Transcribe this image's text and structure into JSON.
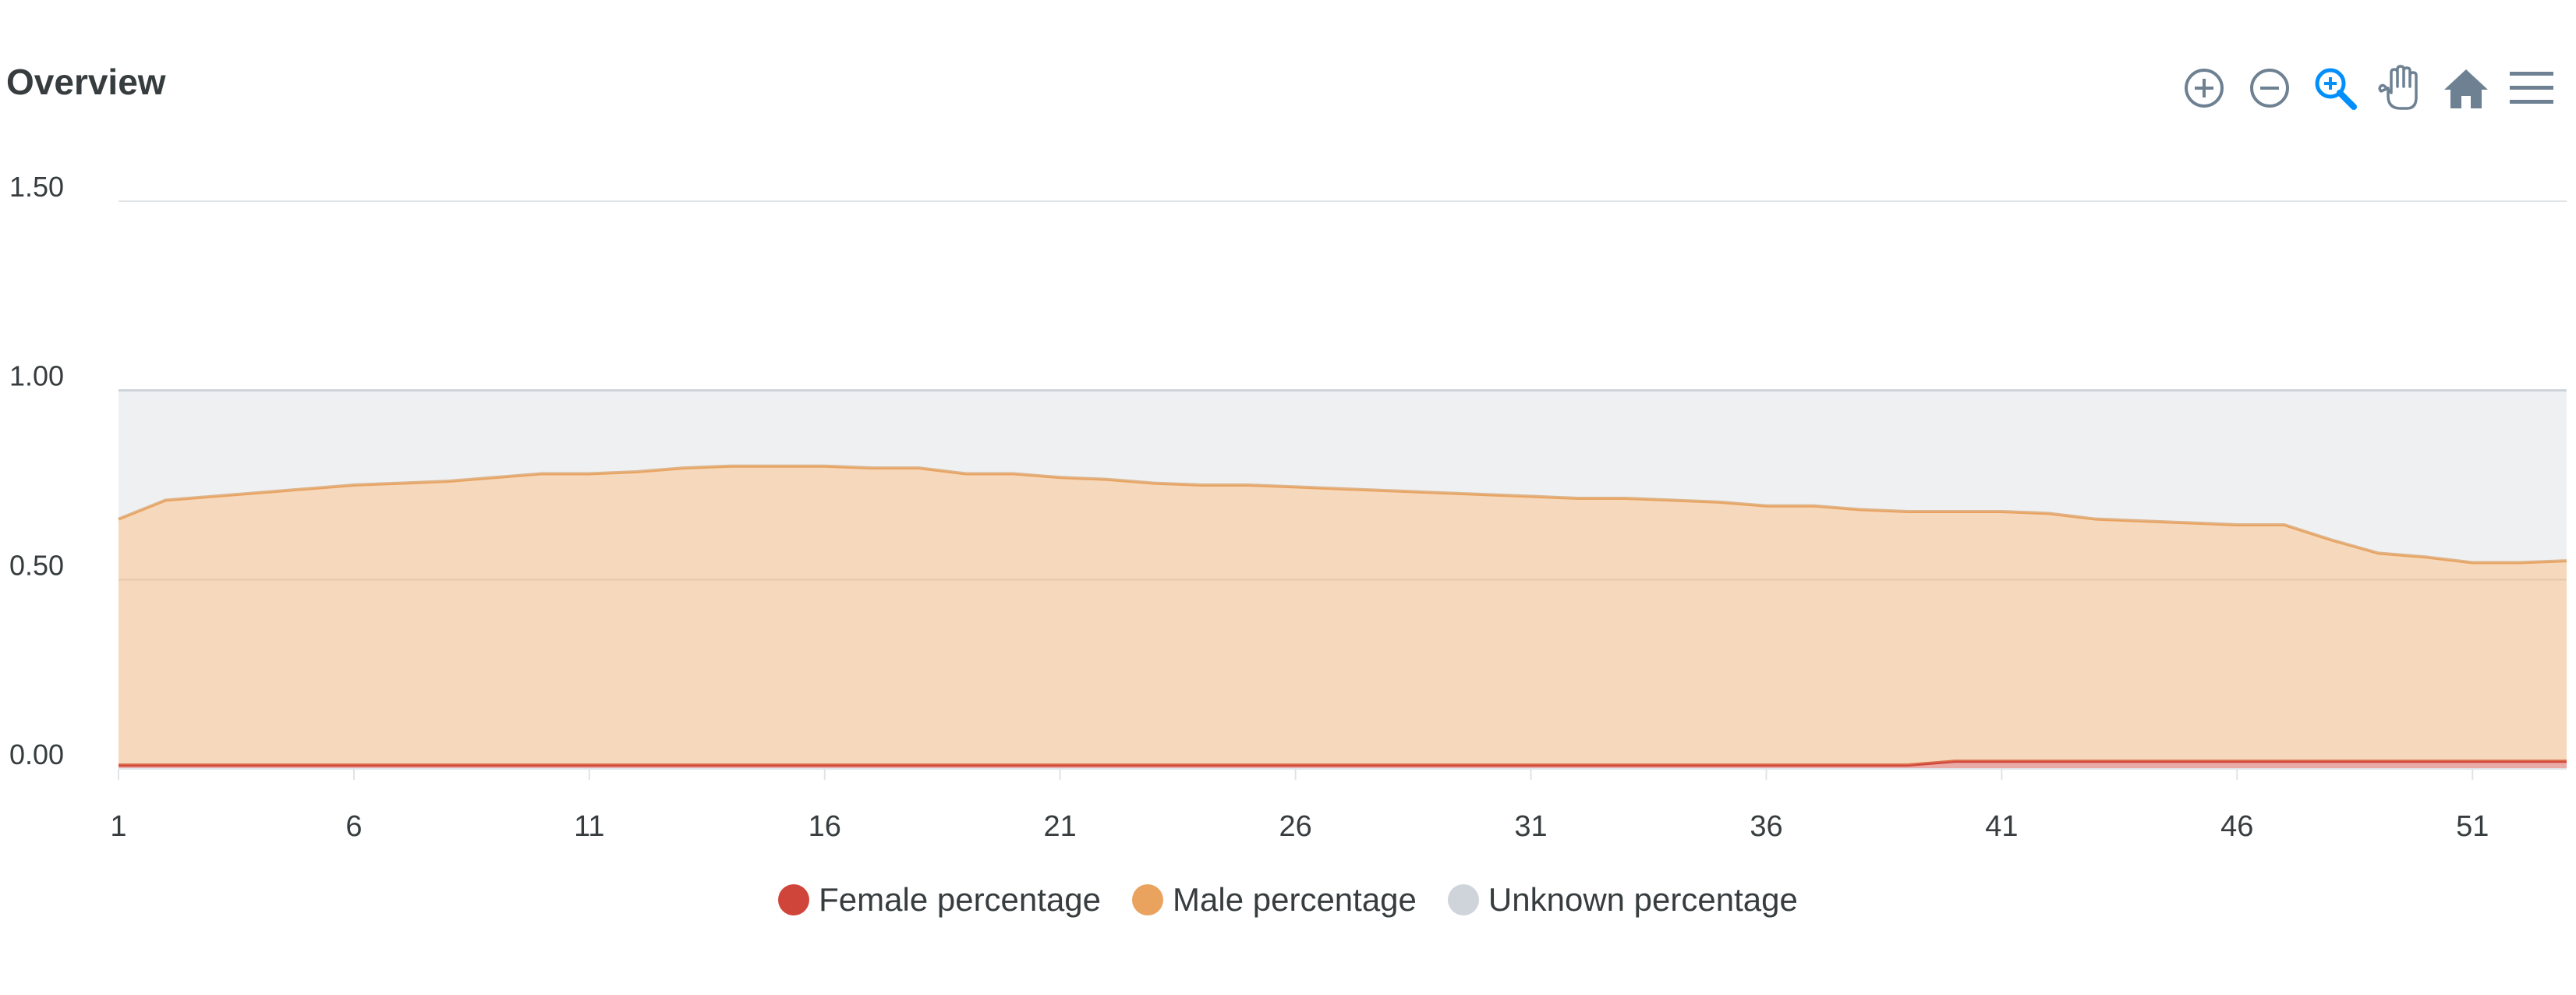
{
  "header": {
    "title": "Overview"
  },
  "toolbar": {
    "tools": [
      {
        "name": "zoom-in-icon",
        "label": "Zoom In"
      },
      {
        "name": "zoom-out-icon",
        "label": "Zoom Out"
      },
      {
        "name": "selection-zoom-icon",
        "label": "Selection Zoom",
        "active": true
      },
      {
        "name": "pan-icon",
        "label": "Panning"
      },
      {
        "name": "home-icon",
        "label": "Reset Zoom"
      },
      {
        "name": "menu-icon",
        "label": "Menu"
      }
    ],
    "icon_color": "#6e8192",
    "active_color": "#008ffb"
  },
  "chart_data": {
    "type": "area",
    "stacked": true,
    "x": [
      1,
      2,
      3,
      4,
      5,
      6,
      7,
      8,
      9,
      10,
      11,
      12,
      13,
      14,
      15,
      16,
      17,
      18,
      19,
      20,
      21,
      22,
      23,
      24,
      25,
      26,
      27,
      28,
      29,
      30,
      31,
      32,
      33,
      34,
      35,
      36,
      37,
      38,
      39,
      40,
      41,
      42,
      43,
      44,
      45,
      46,
      47,
      48,
      49,
      50,
      51,
      52,
      53
    ],
    "x_ticks": [
      "1",
      "6",
      "11",
      "16",
      "21",
      "26",
      "31",
      "36",
      "41",
      "46",
      "51"
    ],
    "y_ticks": [
      "0.00",
      "0.50",
      "1.00",
      "1.50"
    ],
    "ylim": [
      0,
      1.5
    ],
    "xlim": [
      1,
      53
    ],
    "grid": true,
    "legend_position": "bottom",
    "series": [
      {
        "name": "Female percentage",
        "color": "#d0453a",
        "values": [
          0.01,
          0.01,
          0.01,
          0.01,
          0.01,
          0.01,
          0.01,
          0.01,
          0.01,
          0.01,
          0.01,
          0.01,
          0.01,
          0.01,
          0.01,
          0.01,
          0.01,
          0.01,
          0.01,
          0.01,
          0.01,
          0.01,
          0.01,
          0.01,
          0.01,
          0.01,
          0.01,
          0.01,
          0.01,
          0.01,
          0.01,
          0.01,
          0.01,
          0.01,
          0.01,
          0.01,
          0.01,
          0.01,
          0.01,
          0.02,
          0.02,
          0.02,
          0.02,
          0.02,
          0.02,
          0.02,
          0.02,
          0.02,
          0.02,
          0.02,
          0.02,
          0.02,
          0.02
        ]
      },
      {
        "name": "Male percentage",
        "color": "#e9a35f",
        "values": [
          0.65,
          0.7,
          0.71,
          0.72,
          0.73,
          0.74,
          0.745,
          0.75,
          0.76,
          0.77,
          0.77,
          0.775,
          0.785,
          0.79,
          0.79,
          0.79,
          0.785,
          0.785,
          0.77,
          0.77,
          0.76,
          0.755,
          0.745,
          0.74,
          0.74,
          0.735,
          0.73,
          0.725,
          0.72,
          0.715,
          0.71,
          0.705,
          0.705,
          0.7,
          0.695,
          0.685,
          0.685,
          0.675,
          0.67,
          0.66,
          0.66,
          0.655,
          0.64,
          0.635,
          0.63,
          0.625,
          0.625,
          0.585,
          0.55,
          0.54,
          0.525,
          0.525,
          0.53
        ]
      },
      {
        "name": "Unknown percentage",
        "color": "#cfd4db",
        "values": [
          0.34,
          0.29,
          0.28,
          0.27,
          0.26,
          0.25,
          0.245,
          0.24,
          0.23,
          0.22,
          0.22,
          0.215,
          0.205,
          0.2,
          0.2,
          0.2,
          0.205,
          0.205,
          0.22,
          0.22,
          0.23,
          0.235,
          0.245,
          0.25,
          0.25,
          0.255,
          0.26,
          0.265,
          0.27,
          0.275,
          0.28,
          0.285,
          0.285,
          0.29,
          0.295,
          0.305,
          0.305,
          0.315,
          0.32,
          0.32,
          0.32,
          0.325,
          0.34,
          0.345,
          0.35,
          0.355,
          0.355,
          0.395,
          0.43,
          0.44,
          0.455,
          0.455,
          0.45
        ]
      }
    ]
  }
}
